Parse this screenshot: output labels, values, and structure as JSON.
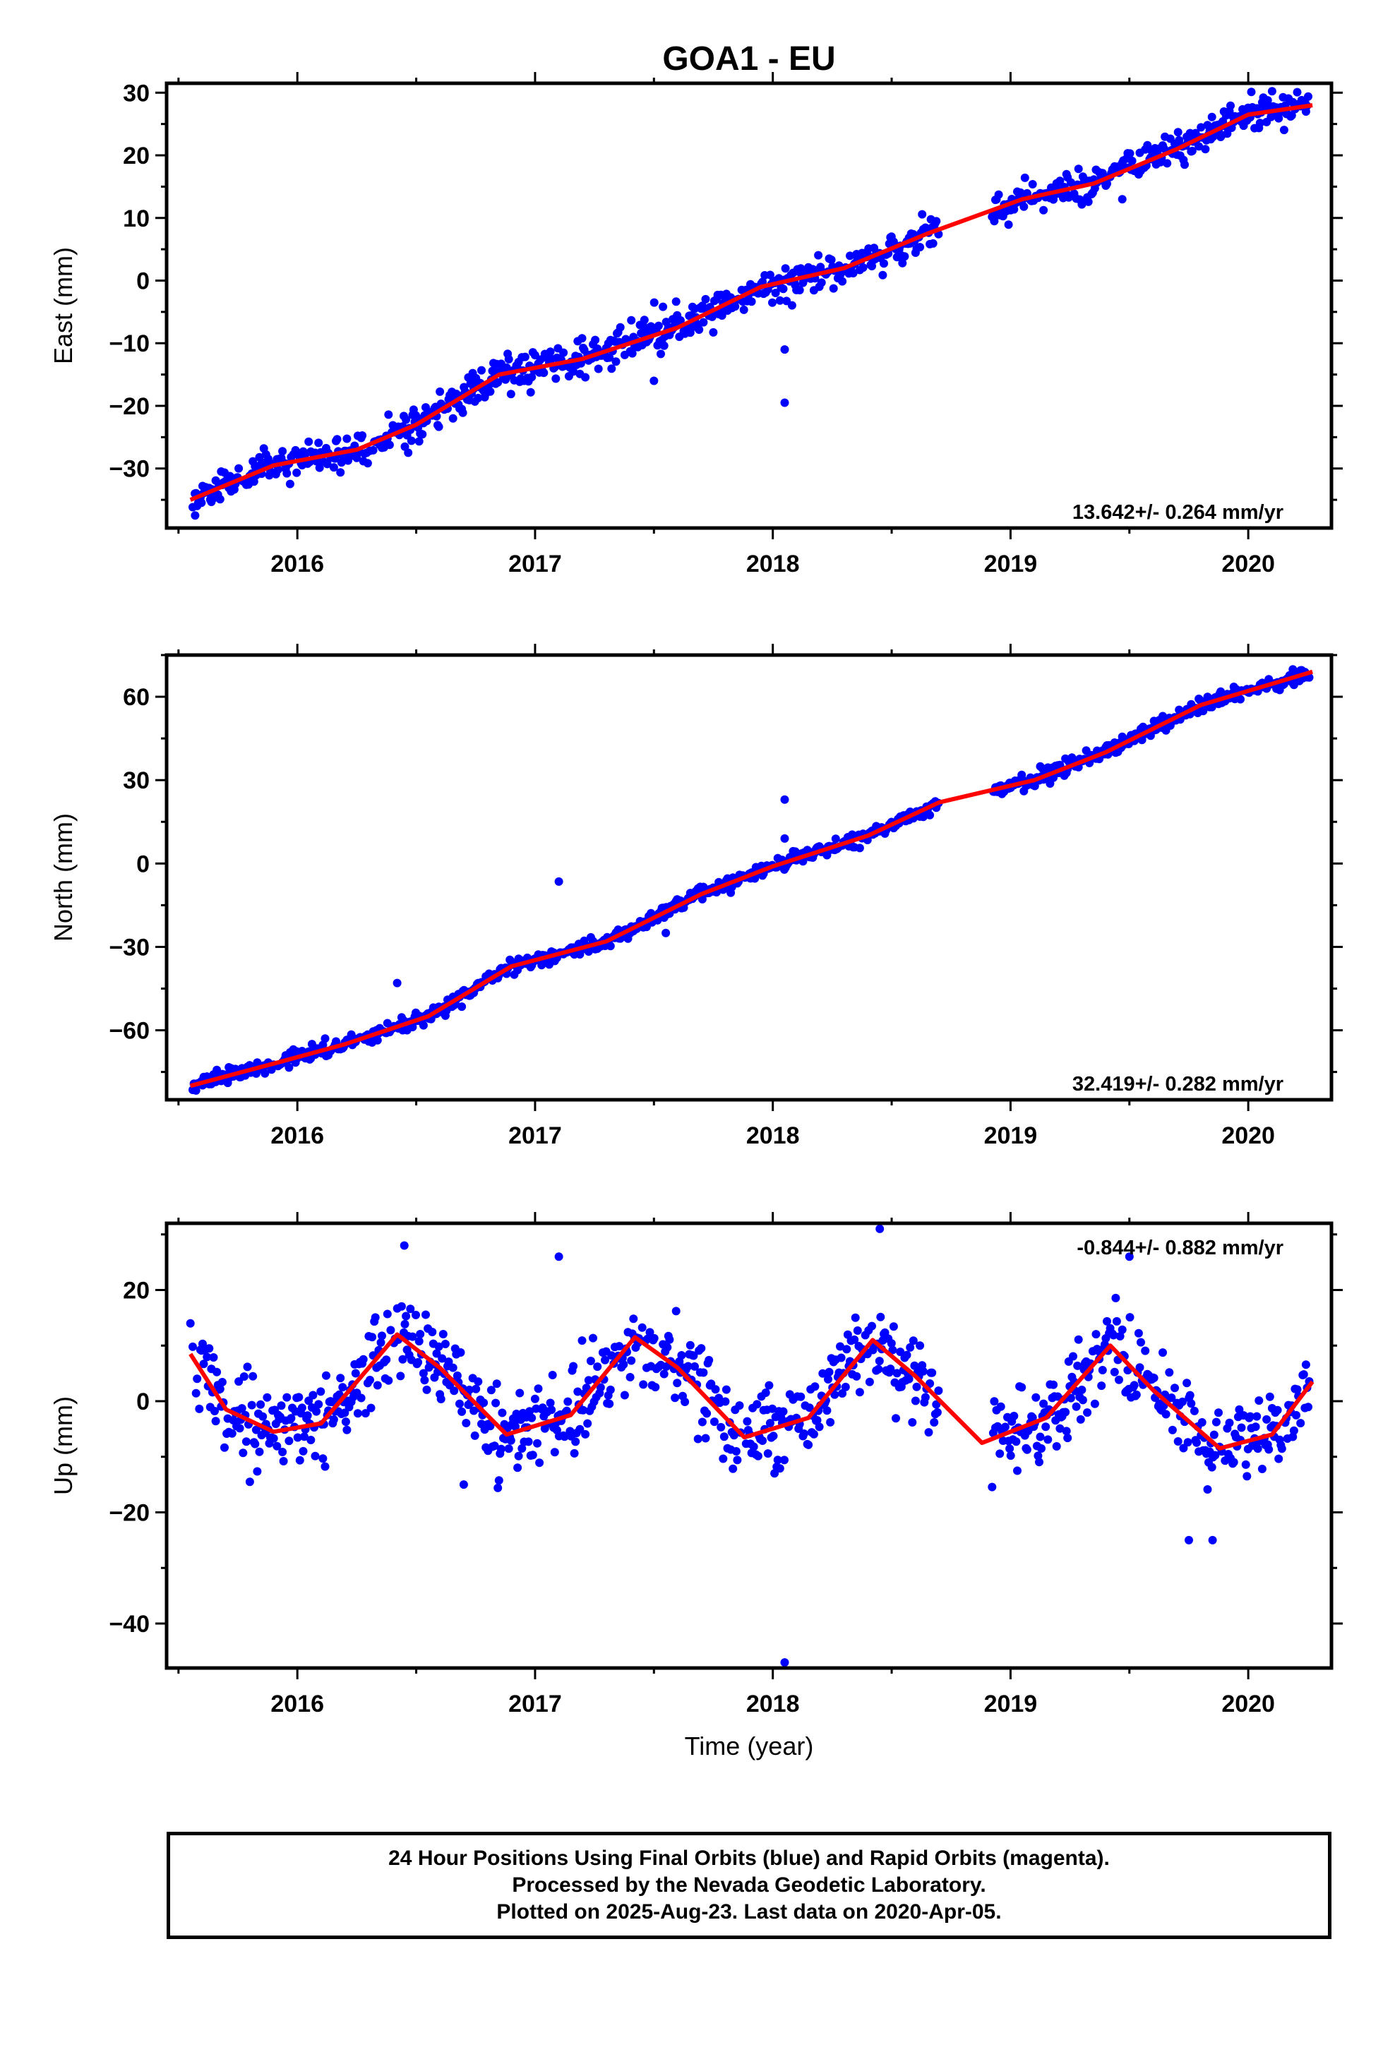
{
  "title": "GOA1 - EU",
  "x_axis_label": "Time (year)",
  "x_ticks": [
    2016,
    2017,
    2018,
    2019,
    2020
  ],
  "colors": {
    "points": "#0000ff",
    "fit": "#ff0000",
    "frame": "#000000"
  },
  "footer": {
    "line1": "24 Hour Positions Using Final Orbits (blue) and Rapid Orbits (magenta).",
    "line2": "Processed by the Nevada Geodetic Laboratory.",
    "line3": "Plotted on 2025-Aug-23. Last data on 2020-Apr-05."
  },
  "chart_data": [
    {
      "type": "scatter",
      "name": "east",
      "ylabel": "East (mm)",
      "rate_label": "13.642+/- 0.264 mm/yr",
      "xlim": [
        2015.45,
        2020.35
      ],
      "ylim": [
        -39.5,
        31.5
      ],
      "y_ticks": [
        -30,
        -20,
        -10,
        0,
        10,
        20,
        30
      ],
      "rate": 13.642,
      "anchor": [
        2018.0,
        0.0
      ],
      "annual_amplitude": 1.6,
      "annual_phase": 0.3,
      "noise_sd": 1.4,
      "seed": 11,
      "gaps": [
        [
          2018.7,
          2018.92
        ]
      ],
      "outliers": [
        [
          2018.05,
          -11.0
        ],
        [
          2018.05,
          -19.5
        ],
        [
          2017.5,
          -16.0
        ],
        [
          2019.47,
          13.0
        ],
        [
          2015.57,
          -37.5
        ]
      ],
      "fit": [
        [
          2015.55,
          -35.0
        ],
        [
          2015.9,
          -29.5
        ],
        [
          2016.25,
          -27.0
        ],
        [
          2016.5,
          -23.0
        ],
        [
          2016.85,
          -15.0
        ],
        [
          2017.2,
          -12.5
        ],
        [
          2017.6,
          -7.5
        ],
        [
          2017.95,
          -1.0
        ],
        [
          2018.3,
          2.0
        ],
        [
          2018.65,
          7.5
        ],
        [
          2019.05,
          13.0
        ],
        [
          2019.35,
          15.5
        ],
        [
          2019.7,
          21.0
        ],
        [
          2020.0,
          26.5
        ],
        [
          2020.27,
          28.0
        ]
      ]
    },
    {
      "type": "scatter",
      "name": "north",
      "ylabel": "North (mm)",
      "rate_label": "32.419+/- 0.282 mm/yr",
      "xlim": [
        2015.45,
        2020.35
      ],
      "ylim": [
        -85.0,
        75.0
      ],
      "y_ticks": [
        -60,
        -30,
        0,
        30,
        60
      ],
      "rate": 32.419,
      "anchor": [
        2018.0,
        0.0
      ],
      "annual_amplitude": 1.8,
      "annual_phase": 0.2,
      "noise_sd": 1.3,
      "seed": 23,
      "gaps": [
        [
          2018.7,
          2018.92
        ]
      ],
      "outliers": [
        [
          2017.1,
          -6.5
        ],
        [
          2018.05,
          23.0
        ],
        [
          2018.05,
          9.0
        ],
        [
          2016.42,
          -43.0
        ],
        [
          2017.55,
          -25.0
        ]
      ],
      "fit": [
        [
          2015.55,
          -80.0
        ],
        [
          2015.9,
          -72.0
        ],
        [
          2016.2,
          -65.0
        ],
        [
          2016.55,
          -55.0
        ],
        [
          2016.9,
          -37.0
        ],
        [
          2017.3,
          -28.0
        ],
        [
          2017.7,
          -11.0
        ],
        [
          2018.0,
          -1.0
        ],
        [
          2018.4,
          10.0
        ],
        [
          2018.7,
          22.0
        ],
        [
          2019.1,
          30.0
        ],
        [
          2019.4,
          40.0
        ],
        [
          2019.8,
          57.0
        ],
        [
          2020.27,
          69.0
        ]
      ]
    },
    {
      "type": "scatter",
      "name": "up",
      "ylabel": "Up (mm)",
      "rate_label": "-0.844+/- 0.882 mm/yr",
      "xlim": [
        2015.45,
        2020.35
      ],
      "ylim": [
        -48.0,
        32.0
      ],
      "y_ticks": [
        -40,
        -20,
        0,
        20
      ],
      "rate": -0.844,
      "anchor": [
        2018.0,
        0.0
      ],
      "annual_amplitude": 9.0,
      "annual_phase": 0.42,
      "noise_sd": 3.6,
      "seed": 37,
      "gaps": [
        [
          2018.7,
          2018.92
        ]
      ],
      "outliers": [
        [
          2017.1,
          26.0
        ],
        [
          2018.45,
          31.0
        ],
        [
          2018.05,
          -47.0
        ],
        [
          2016.45,
          28.0
        ],
        [
          2019.5,
          26.0
        ],
        [
          2019.75,
          -25.0
        ],
        [
          2019.85,
          -25.0
        ],
        [
          2015.55,
          14.0
        ],
        [
          2016.7,
          -15.0
        ],
        [
          2015.8,
          -14.5
        ]
      ],
      "fit": [
        [
          2015.55,
          8.5
        ],
        [
          2015.7,
          -1.5
        ],
        [
          2015.9,
          -5.5
        ],
        [
          2016.1,
          -4.0
        ],
        [
          2016.3,
          6.0
        ],
        [
          2016.42,
          12.0
        ],
        [
          2016.6,
          6.0
        ],
        [
          2016.88,
          -6.0
        ],
        [
          2017.15,
          -2.5
        ],
        [
          2017.42,
          11.5
        ],
        [
          2017.6,
          6.0
        ],
        [
          2017.88,
          -6.5
        ],
        [
          2018.15,
          -3.0
        ],
        [
          2018.42,
          11.0
        ],
        [
          2018.6,
          4.5
        ],
        [
          2018.88,
          -7.5
        ],
        [
          2019.15,
          -3.0
        ],
        [
          2019.42,
          10.0
        ],
        [
          2019.6,
          2.0
        ],
        [
          2019.88,
          -8.5
        ],
        [
          2020.1,
          -6.0
        ],
        [
          2020.27,
          3.5
        ]
      ]
    }
  ]
}
